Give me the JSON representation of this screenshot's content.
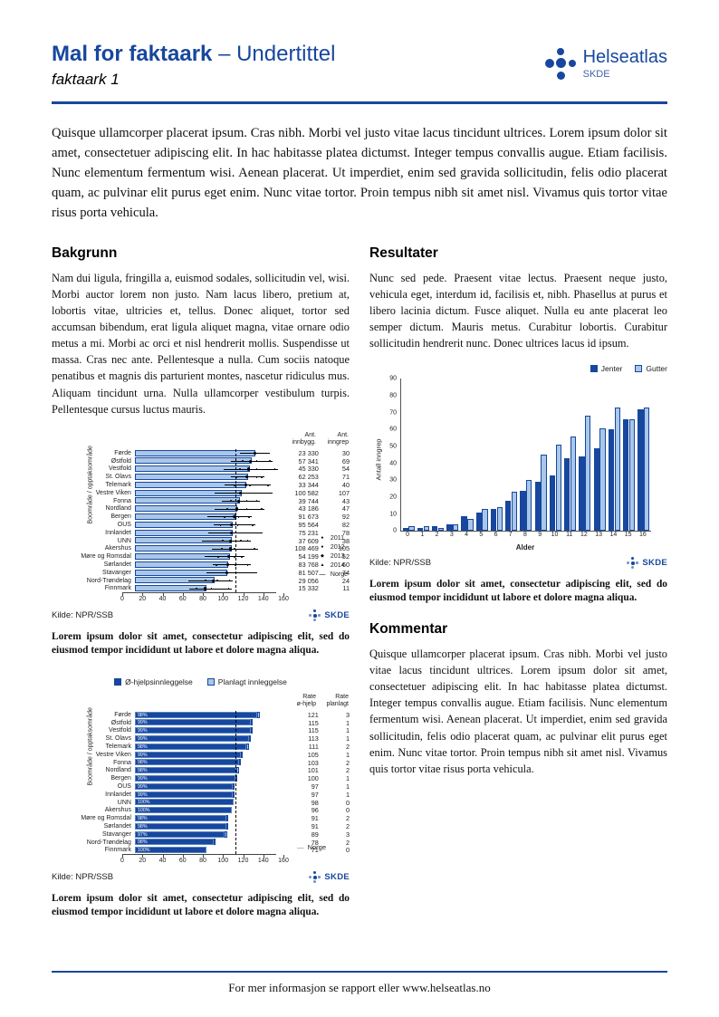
{
  "header": {
    "title": "Mal for faktaark",
    "subtitle": " – Undertittel",
    "sheet_label": "faktaark 1",
    "logo_brand": "Helseatlas",
    "logo_org": "SKDE"
  },
  "intro": "Quisque ullamcorper placerat ipsum. Cras nibh. Morbi vel justo vitae lacus tincidunt ultrices. Lorem ipsum dolor sit amet, consectetuer adipiscing elit. In hac habitasse platea dictumst. Integer tempus convallis augue. Etiam facilisis. Nunc elementum fermentum wisi. Aenean placerat. Ut imperdiet, enim sed gravida sollicitudin, felis odio placerat quam, ac pulvinar elit purus eget enim. Nunc vitae tortor. Proin tempus nibh sit amet nisl. Vivamus quis tortor vitae risus porta vehicula.",
  "left_column": {
    "heading": "Bakgrunn",
    "body": "Nam dui ligula, fringilla a, euismod sodales, sollicitudin vel, wisi. Morbi auctor lorem non justo. Nam lacus libero, pretium at, lobortis vitae, ultricies et, tellus. Donec aliquet, tortor sed accumsan bibendum, erat ligula aliquet magna, vitae ornare odio metus a mi. Morbi ac orci et nisl hendrerit mollis. Suspendisse ut massa. Cras nec ante. Pellentesque a nulla. Cum sociis natoque penatibus et magnis dis parturient montes, nascetur ridiculus mus. Aliquam tincidunt urna. Nulla ullamcorper vestibulum turpis. Pellentesque cursus luctus mauris.",
    "caption1": "Lorem ipsum dolor sit amet, consectetur adipiscing elit, sed do eiusmod tempor incididunt ut labore et dolore magna aliqua.",
    "caption2": "Lorem ipsum dolor sit amet, consectetur adipiscing elit, sed do eiusmod tempor incididunt ut labore et dolore magna aliqua."
  },
  "right_column": {
    "results_heading": "Resultater",
    "results_body": "Nunc sed pede. Praesent vitae lectus. Praesent neque justo, vehicula eget, interdum id, facilisis et, nibh. Phasellus at purus et libero lacinia dictum. Fusce aliquet. Nulla eu ante placerat leo semper dictum. Mauris metus. Curabitur lobortis. Curabitur sollicitudin hendrerit nunc. Donec ultrices lacus id ipsum.",
    "caption": "Lorem ipsum dolor sit amet, consectetur adipiscing elit, sed do eiusmod tempor incididunt ut labore et dolore magna aliqua.",
    "comment_heading": "Kommentar",
    "comment_body": "Quisque ullamcorper placerat ipsum. Cras nibh. Morbi vel justo vitae lacus tincidunt ultrices. Lorem ipsum dolor sit amet, consectetuer adipiscing elit. In hac habitasse platea dictumst. Integer tempus convallis augue. Etiam facilisis. Nunc elementum fermentum wisi. Aenean placerat. Ut imperdiet, enim sed gravida sollicitudin, felis odio placerat quam, ac pulvinar elit purus eget enim. Nunc vitae tortor. Proin tempus nibh sit amet nisl. Vivamus quis tortor vitae risus porta vehicula."
  },
  "footer": {
    "text": "For mer informasjon se rapport eller www.helseatlas.no"
  },
  "colors": {
    "primary": "#17479e",
    "light_blue": "#a9c7e8"
  },
  "chart_data": [
    {
      "type": "bar",
      "orientation": "horizontal",
      "ylabel": "Boområde / opptaksområde",
      "categories": [
        "Førde",
        "Østfold",
        "Vestfold",
        "St. Olavs",
        "Telemark",
        "Vestre Viken",
        "Fonna",
        "Nordland",
        "Bergen",
        "OUS",
        "Innlandet",
        "UNN",
        "Akershus",
        "Møre og Romsdal",
        "Sørlandet",
        "Stavanger",
        "Nord-Trøndelag",
        "Finnmark"
      ],
      "values": [
        120,
        116,
        114,
        112,
        111,
        106,
        104,
        102,
        100,
        97,
        97,
        96,
        96,
        94,
        93,
        92,
        79,
        71
      ],
      "columns": [
        {
          "header": "Ant.<br>innbygg.",
          "values": [
            "23 330",
            "57 341",
            "45 330",
            "62 253",
            "33 344",
            "100 582",
            "39 744",
            "43 186",
            "91 673",
            "95 564",
            "75 231",
            "37 609",
            "108 469",
            "54 199",
            "83 768",
            "81 507",
            "29 056",
            "15 332"
          ]
        },
        {
          "header": "Ant.<br>inngrep",
          "values": [
            "30",
            "69",
            "54",
            "71",
            "40",
            "107",
            "43",
            "47",
            "92",
            "82",
            "78",
            "38",
            "105",
            "52",
            "60",
            "74",
            "24",
            "11"
          ]
        }
      ],
      "legend": [
        {
          "symbol": "●",
          "label": "2011"
        },
        {
          "symbol": "●",
          "label": "2012"
        },
        {
          "symbol": "◆",
          "label": "2013"
        },
        {
          "symbol": "▲",
          "label": "2014"
        },
        {
          "symbol": "—",
          "label": "Norge"
        }
      ],
      "xticks": [
        0,
        20,
        40,
        60,
        80,
        100,
        120,
        140,
        160
      ],
      "xlim": [
        0,
        160
      ],
      "reference_line": 100,
      "source": "Kilde: NPR/SSB",
      "brand": "SKDE"
    },
    {
      "type": "bar",
      "orientation": "horizontal",
      "stacked": true,
      "ylabel": "Boområde / opptaksområde",
      "legend": [
        "Ø-hjelpsinnleggelse",
        "Planlagt innleggelse"
      ],
      "categories": [
        "Førde",
        "Østfold",
        "Vestfold",
        "St. Olavs",
        "Telemark",
        "Vestre Viken",
        "Fonna",
        "Nordland",
        "Bergen",
        "OUS",
        "Innlandet",
        "UNN",
        "Akershus",
        "Møre og Romsdal",
        "Sørlandet",
        "Stavanger",
        "Nord-Trøndelag",
        "Finnmark"
      ],
      "series": [
        {
          "name": "Ø-hjelpsinnleggelse",
          "values": [
            121,
            115,
            115,
            113,
            111,
            105,
            103,
            101,
            100,
            97,
            97,
            98,
            96,
            91,
            91,
            89,
            78,
            71
          ]
        },
        {
          "name": "Planlagt innleggelse",
          "values": [
            3,
            1,
            1,
            1,
            2,
            1,
            2,
            2,
            1,
            1,
            1,
            0,
            0,
            2,
            2,
            3,
            2,
            0
          ]
        }
      ],
      "bar_labels": [
        "98%",
        "99%",
        "99%",
        "99%",
        "98%",
        "99%",
        "98%",
        "98%",
        "99%",
        "99%",
        "99%",
        "100%",
        "100%",
        "98%",
        "98%",
        "97%",
        "98%",
        "100%"
      ],
      "columns": [
        {
          "header": "Rate<br>ø-hjelp",
          "values": [
            "121",
            "115",
            "115",
            "113",
            "111",
            "105",
            "103",
            "101",
            "100",
            "97",
            "97",
            "98",
            "96",
            "91",
            "91",
            "89",
            "78",
            "71"
          ]
        },
        {
          "header": "Rate<br>planlagt",
          "values": [
            "3",
            "1",
            "1",
            "1",
            "2",
            "1",
            "2",
            "2",
            "1",
            "1",
            "1",
            "0",
            "0",
            "2",
            "2",
            "3",
            "2",
            "0"
          ]
        }
      ],
      "xticks": [
        0,
        20,
        40,
        60,
        80,
        100,
        120,
        140,
        160
      ],
      "xlim": [
        0,
        160
      ],
      "reference_line": 100,
      "reference_label": "Norge",
      "source": "Kilde: NPR/SSB",
      "brand": "SKDE"
    },
    {
      "type": "bar",
      "grouped": true,
      "xlabel": "Alder",
      "ylabel": "Antall inngrep",
      "categories": [
        "0",
        "1",
        "2",
        "3",
        "4",
        "5",
        "6",
        "7",
        "8",
        "9",
        "10",
        "11",
        "12",
        "13",
        "14",
        "15",
        "16"
      ],
      "series": [
        {
          "name": "Jenter",
          "color": "#17479e",
          "values": [
            2,
            2,
            3,
            4,
            9,
            11,
            13,
            18,
            24,
            29,
            33,
            43,
            44,
            49,
            60,
            66,
            72
          ]
        },
        {
          "name": "Gutter",
          "color": "#a9c7e8",
          "values": [
            3,
            3,
            2,
            4,
            7,
            13,
            14,
            23,
            30,
            45,
            51,
            56,
            68,
            61,
            73,
            66,
            73
          ]
        }
      ],
      "ylim": [
        0,
        90
      ],
      "yticks": [
        0,
        10,
        20,
        30,
        40,
        50,
        60,
        70,
        80,
        90
      ],
      "legend_position": "top-right",
      "grid": false,
      "source": "Kilde: NPR/SSB",
      "brand": "SKDE"
    }
  ]
}
